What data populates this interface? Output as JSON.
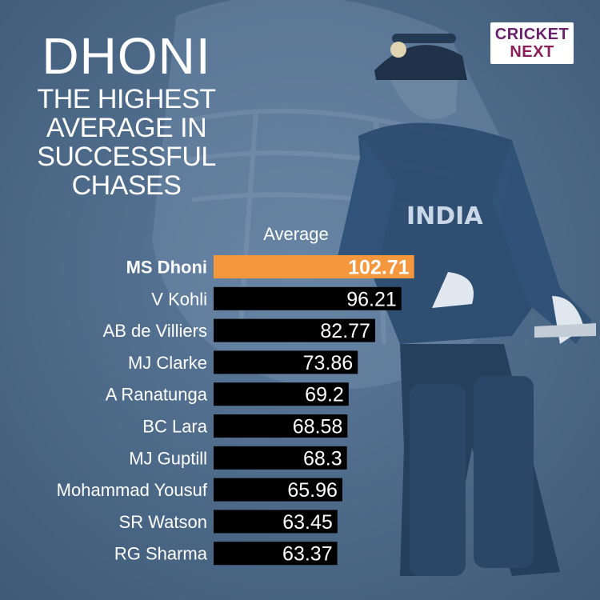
{
  "title": {
    "main": "DHONI",
    "subtitle_lines": [
      "THE HIGHEST",
      "AVERAGE IN",
      "SUCCESSFUL",
      "CHASES"
    ]
  },
  "logo": {
    "line1": "CRICKET",
    "line2": "NEXT"
  },
  "colors": {
    "background": "#4f6c8c",
    "highlight_bar": "#f5973c",
    "bar": "#000000",
    "text": "#ffffff"
  },
  "chart_data": {
    "type": "bar",
    "orientation": "horizontal",
    "value_heading": "Average",
    "categories": [
      "MS Dhoni",
      "V Kohli",
      "AB de Villiers",
      "MJ Clarke",
      "A Ranatunga",
      "BC Lara",
      "MJ Guptill",
      "Mohammad Yousuf",
      "SR Watson",
      "RG Sharma"
    ],
    "values": [
      102.71,
      96.21,
      82.77,
      73.86,
      69.2,
      68.58,
      68.3,
      65.96,
      63.45,
      63.37
    ],
    "value_labels": [
      "102.71",
      "96.21",
      "82.77",
      "73.86",
      "69.2",
      "68.58",
      "68.3",
      "65.96",
      "63.45",
      "63.37"
    ],
    "highlight": "MS Dhoni",
    "grid": false,
    "legend": "none"
  }
}
